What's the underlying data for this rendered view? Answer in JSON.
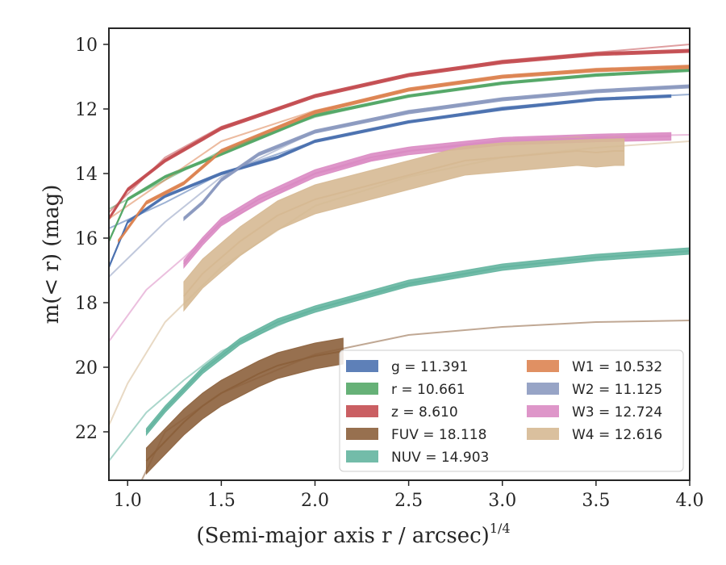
{
  "chart_data": {
    "type": "line",
    "xlabel": "(Semi-major axis r / arcsec)",
    "xlabel_exponent": "1/4",
    "ylabel": "m(< r) (mag)",
    "xlim": [
      0.9,
      4.0
    ],
    "ylim": [
      23.5,
      9.5
    ],
    "y_inverted": true,
    "xticks": [
      1.0,
      1.5,
      2.0,
      2.5,
      3.0,
      3.5,
      4.0
    ],
    "xtick_labels": [
      "1.0",
      "1.5",
      "2.0",
      "2.5",
      "3.0",
      "3.5",
      "4.0"
    ],
    "yticks": [
      10,
      12,
      14,
      16,
      18,
      20,
      22
    ],
    "ytick_labels": [
      "10",
      "12",
      "14",
      "16",
      "18",
      "20",
      "22"
    ],
    "grid": false,
    "legend_position": "lower-right",
    "series": [
      {
        "name": "g = 11.391",
        "color": "#4c72b0",
        "x": [
          0.9,
          1.0,
          1.2,
          1.5,
          1.8,
          2.0,
          2.5,
          3.0,
          3.5,
          3.9
        ],
        "y": [
          16.9,
          15.5,
          14.7,
          14.0,
          13.5,
          13.0,
          12.4,
          12.0,
          11.7,
          11.6
        ],
        "band": 0.04,
        "model": {
          "x": [
            0.9,
            1.2,
            1.5,
            2.0,
            2.5,
            3.0,
            3.5,
            4.0
          ],
          "y": [
            15.7,
            14.9,
            14.0,
            13.0,
            12.4,
            11.95,
            11.7,
            11.55
          ]
        }
      },
      {
        "name": "r = 10.661",
        "color": "#55a868",
        "x": [
          0.9,
          1.0,
          1.2,
          1.5,
          2.0,
          2.5,
          3.0,
          3.5,
          4.0
        ],
        "y": [
          16.1,
          14.8,
          14.1,
          13.4,
          12.2,
          11.6,
          11.2,
          10.95,
          10.8
        ],
        "band": 0.04,
        "model": {
          "x": [
            0.9,
            1.2,
            1.5,
            2.0,
            2.5,
            3.0,
            3.5,
            4.0
          ],
          "y": [
            15.1,
            14.2,
            13.3,
            12.25,
            11.6,
            11.2,
            10.95,
            10.8
          ]
        }
      },
      {
        "name": "z = 8.610",
        "color": "#c44e52",
        "x": [
          0.9,
          1.0,
          1.2,
          1.5,
          2.0,
          2.5,
          3.0,
          3.5,
          4.0
        ],
        "y": [
          15.4,
          14.5,
          13.6,
          12.6,
          11.6,
          10.95,
          10.55,
          10.3,
          10.2
        ],
        "band": 0.05,
        "model": {
          "x": [
            0.9,
            1.2,
            1.5,
            2.0,
            2.5,
            3.0,
            3.5,
            4.0
          ],
          "y": [
            15.2,
            13.5,
            12.55,
            11.6,
            10.95,
            10.5,
            10.25,
            10.0
          ]
        }
      },
      {
        "name": "FUV = 18.118",
        "color": "#8c613c",
        "x": [
          1.1,
          1.2,
          1.3,
          1.4,
          1.5,
          1.6,
          1.7,
          1.8,
          1.9,
          2.0,
          2.1,
          2.15
        ],
        "y": [
          22.9,
          22.3,
          21.7,
          21.2,
          20.8,
          20.5,
          20.2,
          19.95,
          19.8,
          19.65,
          19.55,
          19.5
        ],
        "band": 0.4,
        "model": {
          "x": [
            0.9,
            1.2,
            1.5,
            2.0,
            2.5,
            3.0,
            3.5,
            4.0
          ],
          "y": [
            25.6,
            22.0,
            20.8,
            19.6,
            19.0,
            18.75,
            18.6,
            18.55
          ]
        }
      },
      {
        "name": "NUV = 14.903",
        "color": "#64b5a0",
        "x": [
          1.1,
          1.2,
          1.4,
          1.6,
          1.8,
          2.0,
          2.5,
          3.0,
          3.5,
          4.0
        ],
        "y": [
          22.0,
          21.3,
          20.1,
          19.2,
          18.6,
          18.2,
          17.4,
          16.9,
          16.6,
          16.4
        ],
        "band": 0.1,
        "model": {
          "x": [
            0.9,
            1.1,
            1.3,
            1.5,
            2.0,
            2.5,
            3.0,
            3.5,
            4.0
          ],
          "y": [
            22.9,
            21.4,
            20.4,
            19.5,
            18.2,
            17.45,
            16.9,
            16.6,
            16.4
          ]
        }
      },
      {
        "name": "W1 = 10.532",
        "color": "#dd8452",
        "x": [
          0.95,
          1.1,
          1.3,
          1.5,
          2.0,
          2.5,
          3.0,
          3.5,
          4.0
        ],
        "y": [
          16.1,
          14.9,
          14.3,
          13.3,
          12.1,
          11.4,
          11.0,
          10.8,
          10.7
        ],
        "band": 0.05,
        "model": {
          "x": [
            0.9,
            1.2,
            1.5,
            2.0,
            2.5,
            3.0,
            3.5,
            4.0
          ],
          "y": [
            15.4,
            14.2,
            13.0,
            12.05,
            11.4,
            11.0,
            10.75,
            10.65
          ]
        }
      },
      {
        "name": "W2 = 11.125",
        "color": "#8c9ac0",
        "x": [
          1.3,
          1.4,
          1.5,
          1.7,
          2.0,
          2.5,
          3.0,
          3.5,
          4.0
        ],
        "y": [
          15.4,
          14.9,
          14.2,
          13.4,
          12.7,
          12.1,
          11.7,
          11.45,
          11.3
        ],
        "band": 0.05,
        "model": {
          "x": [
            0.9,
            1.2,
            1.5,
            2.0,
            2.5,
            3.0,
            3.5,
            4.0
          ],
          "y": [
            17.2,
            15.5,
            14.1,
            12.7,
            12.05,
            11.7,
            11.45,
            11.3
          ]
        }
      },
      {
        "name": "W3 = 12.724",
        "color": "#da8bc3",
        "x": [
          1.3,
          1.4,
          1.5,
          1.7,
          2.0,
          2.3,
          2.5,
          3.0,
          3.5,
          3.9
        ],
        "y": [
          16.8,
          16.1,
          15.5,
          14.8,
          14.0,
          13.5,
          13.3,
          13.0,
          12.9,
          12.85
        ],
        "band": 0.12,
        "model": {
          "x": [
            0.9,
            1.1,
            1.3,
            1.5,
            2.0,
            2.5,
            3.0,
            3.5,
            4.0
          ],
          "y": [
            19.2,
            17.6,
            16.6,
            15.55,
            14.0,
            13.3,
            12.95,
            12.85,
            12.8
          ]
        }
      },
      {
        "name": "W4 = 12.616",
        "color": "#d6b993",
        "x": [
          1.3,
          1.4,
          1.5,
          1.6,
          1.8,
          2.0,
          2.2,
          2.4,
          2.6,
          2.8,
          3.0,
          3.2,
          3.4,
          3.5,
          3.6,
          3.65
        ],
        "y": [
          17.8,
          17.1,
          16.6,
          16.1,
          15.3,
          14.8,
          14.5,
          14.2,
          13.9,
          13.6,
          13.5,
          13.4,
          13.3,
          13.35,
          13.3,
          13.3
        ],
        "band": 0.45,
        "model": {
          "x": [
            0.9,
            1.0,
            1.2,
            1.5,
            2.0,
            2.5,
            3.0,
            3.5,
            4.0
          ],
          "y": [
            21.8,
            20.5,
            18.6,
            16.9,
            15.0,
            14.1,
            13.5,
            13.2,
            13.0
          ]
        }
      }
    ]
  }
}
